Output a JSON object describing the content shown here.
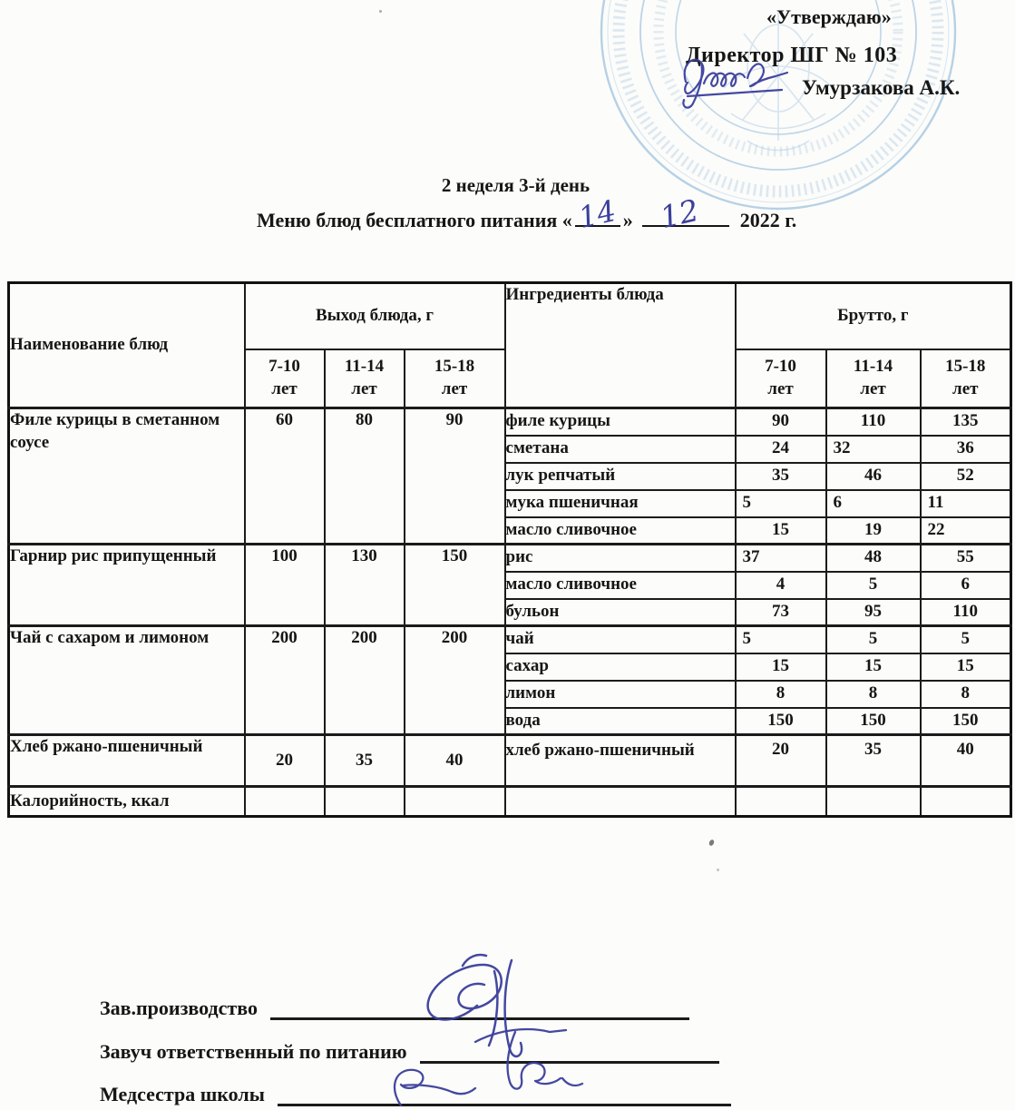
{
  "colors": {
    "ink_blue": "#3b3f9c",
    "stamp_blue": "#a9c9e2",
    "text_black": "#161616"
  },
  "approval": {
    "approve_label": "«Утверждаю»",
    "director_line": "Директор ШГ № 103",
    "director_name": "Умурзакова А.К."
  },
  "title": {
    "week_day": "2 неделя 3-й день",
    "menu_prefix": "Меню блюд бесплатного питания «",
    "day": "14",
    "close_quote": "»",
    "month": "12",
    "year": "2022 г."
  },
  "table": {
    "headers": {
      "dish": "Наименование блюд",
      "output": "Выход блюда, г",
      "ingredients": "Ингредиенты блюда",
      "gross": "Брутто, г",
      "age_groups": [
        "7-10 лет",
        "11-14 лет",
        "15-18 лет"
      ]
    },
    "dishes": [
      {
        "name": "Филе курицы в сметанном соусе",
        "output": [
          "60",
          "80",
          "90"
        ],
        "ingredients": [
          {
            "name": "филе курицы",
            "gross": [
              "90",
              "110",
              "135"
            ]
          },
          {
            "name": "сметана",
            "gross": [
              "24",
              "32",
              "36"
            ],
            "align": [
              "c",
              "l",
              "c"
            ]
          },
          {
            "name": "лук репчатый",
            "gross": [
              "35",
              "46",
              "52"
            ]
          },
          {
            "name": "мука пшеничная",
            "gross": [
              "5",
              "6",
              "11"
            ],
            "align": [
              "l",
              "l",
              "l"
            ]
          },
          {
            "name": "масло сливочное",
            "gross": [
              "15",
              "19",
              "22"
            ],
            "align": [
              "c",
              "c",
              "l"
            ]
          }
        ]
      },
      {
        "name": "Гарнир рис припущенный",
        "output": [
          "100",
          "130",
          "150"
        ],
        "ingredients": [
          {
            "name": "рис",
            "gross": [
              "37",
              "48",
              "55"
            ],
            "align": [
              "l",
              "c",
              "c"
            ]
          },
          {
            "name": "масло сливочное",
            "gross": [
              "4",
              "5",
              "6"
            ]
          },
          {
            "name": "бульон",
            "gross": [
              "73",
              "95",
              "110"
            ]
          }
        ]
      },
      {
        "name": "Чай с сахаром и лимоном",
        "output": [
          "200",
          "200",
          "200"
        ],
        "ingredients": [
          {
            "name": "чай",
            "gross": [
              "5",
              "5",
              "5"
            ],
            "align": [
              "l",
              "c",
              "c"
            ]
          },
          {
            "name": "сахар",
            "gross": [
              "15",
              "15",
              "15"
            ]
          },
          {
            "name": "лимон",
            "gross": [
              "8",
              "8",
              "8"
            ]
          },
          {
            "name": "вода",
            "gross": [
              "150",
              "150",
              "150"
            ]
          }
        ]
      },
      {
        "name": "Хлеб ржано-пшеничный",
        "output": [
          "20",
          "35",
          "40"
        ],
        "output_middle": true,
        "tall": true,
        "ingredients": [
          {
            "name": "хлеб ржано-пшеничный",
            "gross": [
              "20",
              "35",
              "40"
            ]
          }
        ]
      }
    ],
    "calories_row": {
      "label": "Калорийность, ккал",
      "values": [
        "",
        "",
        "",
        "",
        "",
        "",
        ""
      ]
    }
  },
  "signatures": [
    {
      "label": "Зав.производство"
    },
    {
      "label": "Завуч ответственный по питанию"
    },
    {
      "label": "Медсестра школы"
    }
  ]
}
